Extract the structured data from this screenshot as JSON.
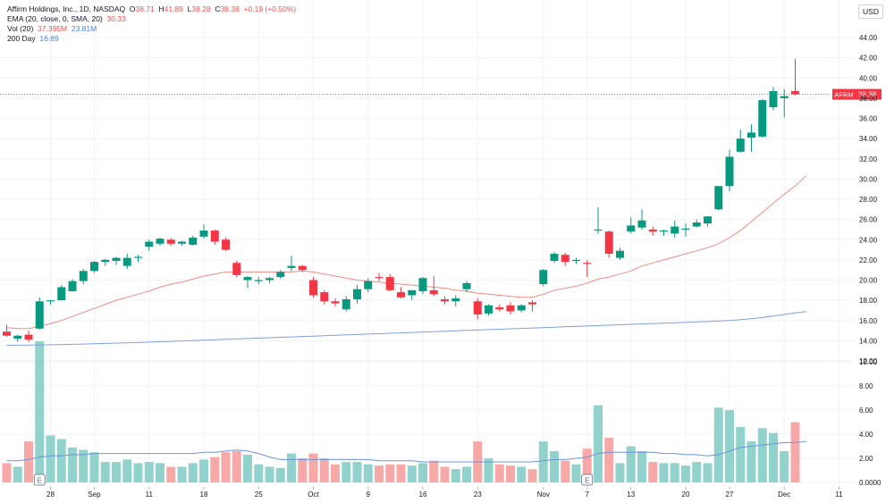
{
  "legend": {
    "title": "Affirm Holdings, Inc., 1D, NASDAQ",
    "ohlc": {
      "o_label": "O",
      "o": "38.71",
      "h_label": "H",
      "h": "41.89",
      "l_label": "L",
      "l": "38.28",
      "c_label": "C",
      "c": "38.38",
      "chg": "+0.19 (+0.50%)"
    },
    "ema_label": "EMA (20, close, 0, SMA, 20)",
    "ema_value": "30.33",
    "vol_label": "Vol (20)",
    "vol_value": "37.395M",
    "vol_ma_value": "23.81M",
    "ma200_label": "200 Day",
    "ma200_value": "16.89"
  },
  "currency_button": "USD",
  "price_tag": {
    "symbol": "AFRM",
    "value": "38.38"
  },
  "chart_data": {
    "type": "candlestick",
    "price_axis": {
      "min": 12.0,
      "max": 44.0,
      "ticks": [
        "44.00",
        "42.00",
        "40.00",
        "38.00",
        "36.00",
        "34.00",
        "32.00",
        "30.00",
        "28.00",
        "26.00",
        "24.00",
        "22.00",
        "20.00",
        "18.00",
        "16.00",
        "14.00",
        "12.00"
      ]
    },
    "volume_axis": {
      "min": 0,
      "max": 10,
      "ticks": [
        "10.00",
        "8.00",
        "6.00",
        "4.00",
        "2.00",
        "0.0000"
      ]
    },
    "x_ticks": [
      {
        "label": "28",
        "index": 4
      },
      {
        "label": "Sep",
        "index": 8
      },
      {
        "label": "11",
        "index": 13
      },
      {
        "label": "18",
        "index": 18
      },
      {
        "label": "25",
        "index": 23
      },
      {
        "label": "Oct",
        "index": 28
      },
      {
        "label": "9",
        "index": 33
      },
      {
        "label": "16",
        "index": 38
      },
      {
        "label": "23",
        "index": 43
      },
      {
        "label": "Nov",
        "index": 49
      },
      {
        "label": "7",
        "index": 53
      },
      {
        "label": "13",
        "index": 57
      },
      {
        "label": "20",
        "index": 62
      },
      {
        "label": "27",
        "index": 66
      },
      {
        "label": "Dec",
        "index": 71
      },
      {
        "label": "11",
        "index": 76
      }
    ],
    "candles": [
      {
        "o": 14.9,
        "h": 15.6,
        "l": 14.4,
        "c": 14.5,
        "v": 1.6
      },
      {
        "o": 14.2,
        "h": 14.6,
        "l": 13.9,
        "c": 14.5,
        "v": 1.3
      },
      {
        "o": 14.6,
        "h": 15.0,
        "l": 13.9,
        "c": 14.1,
        "v": 3.4
      },
      {
        "o": 15.2,
        "h": 18.3,
        "l": 15.1,
        "c": 17.9,
        "v": 11.7
      },
      {
        "o": 17.9,
        "h": 18.0,
        "l": 17.6,
        "c": 18.0,
        "v": 3.9
      },
      {
        "o": 18.0,
        "h": 19.5,
        "l": 18.0,
        "c": 19.3,
        "v": 3.6
      },
      {
        "o": 18.9,
        "h": 20.1,
        "l": 18.9,
        "c": 19.9,
        "v": 2.9
      },
      {
        "o": 19.9,
        "h": 21.1,
        "l": 19.6,
        "c": 20.9,
        "v": 2.7
      },
      {
        "o": 20.9,
        "h": 21.9,
        "l": 20.7,
        "c": 21.8,
        "v": 2.5
      },
      {
        "o": 21.8,
        "h": 22.1,
        "l": 21.4,
        "c": 22.0,
        "v": 1.7
      },
      {
        "o": 21.9,
        "h": 22.3,
        "l": 21.5,
        "c": 22.2,
        "v": 1.7
      },
      {
        "o": 21.4,
        "h": 22.6,
        "l": 21.1,
        "c": 22.2,
        "v": 1.9
      },
      {
        "o": 22.2,
        "h": 22.5,
        "l": 21.8,
        "c": 22.3,
        "v": 1.6
      },
      {
        "o": 23.3,
        "h": 24.0,
        "l": 22.9,
        "c": 23.8,
        "v": 1.7
      },
      {
        "o": 23.6,
        "h": 24.2,
        "l": 23.4,
        "c": 24.1,
        "v": 1.6
      },
      {
        "o": 24.0,
        "h": 24.2,
        "l": 23.4,
        "c": 23.6,
        "v": 1.3
      },
      {
        "o": 23.6,
        "h": 23.9,
        "l": 23.4,
        "c": 23.8,
        "v": 1.3
      },
      {
        "o": 23.5,
        "h": 24.4,
        "l": 23.4,
        "c": 24.2,
        "v": 1.6
      },
      {
        "o": 24.3,
        "h": 25.5,
        "l": 24.1,
        "c": 24.9,
        "v": 1.9
      },
      {
        "o": 24.9,
        "h": 25.0,
        "l": 23.5,
        "c": 23.8,
        "v": 2.1
      },
      {
        "o": 24.0,
        "h": 24.2,
        "l": 22.9,
        "c": 23.0,
        "v": 2.5
      },
      {
        "o": 21.7,
        "h": 21.9,
        "l": 20.3,
        "c": 20.5,
        "v": 2.6
      },
      {
        "o": 20.0,
        "h": 20.4,
        "l": 19.2,
        "c": 20.3,
        "v": 2.3
      },
      {
        "o": 19.9,
        "h": 20.3,
        "l": 19.6,
        "c": 20.0,
        "v": 1.5
      },
      {
        "o": 20.0,
        "h": 20.3,
        "l": 19.7,
        "c": 20.2,
        "v": 1.3
      },
      {
        "o": 20.3,
        "h": 21.0,
        "l": 20.1,
        "c": 20.8,
        "v": 1.2
      },
      {
        "o": 21.2,
        "h": 22.4,
        "l": 20.9,
        "c": 21.4,
        "v": 2.4
      },
      {
        "o": 21.4,
        "h": 21.5,
        "l": 20.8,
        "c": 21.0,
        "v": 2.0
      },
      {
        "o": 20.0,
        "h": 20.3,
        "l": 18.3,
        "c": 18.5,
        "v": 2.4
      },
      {
        "o": 18.8,
        "h": 19.0,
        "l": 17.6,
        "c": 17.9,
        "v": 2.0
      },
      {
        "o": 17.9,
        "h": 18.2,
        "l": 17.4,
        "c": 17.7,
        "v": 1.5
      },
      {
        "o": 17.1,
        "h": 18.4,
        "l": 16.9,
        "c": 18.1,
        "v": 1.7
      },
      {
        "o": 18.1,
        "h": 19.5,
        "l": 17.7,
        "c": 19.1,
        "v": 1.7
      },
      {
        "o": 19.1,
        "h": 20.2,
        "l": 18.8,
        "c": 19.9,
        "v": 1.5
      },
      {
        "o": 20.3,
        "h": 20.7,
        "l": 19.9,
        "c": 20.2,
        "v": 1.4
      },
      {
        "o": 20.3,
        "h": 20.6,
        "l": 18.9,
        "c": 19.0,
        "v": 1.5
      },
      {
        "o": 18.8,
        "h": 19.3,
        "l": 18.2,
        "c": 18.3,
        "v": 1.5
      },
      {
        "o": 18.5,
        "h": 19.0,
        "l": 18.0,
        "c": 19.0,
        "v": 1.4
      },
      {
        "o": 18.9,
        "h": 20.3,
        "l": 18.6,
        "c": 20.2,
        "v": 1.6
      },
      {
        "o": 19.0,
        "h": 20.4,
        "l": 18.4,
        "c": 18.6,
        "v": 1.8
      },
      {
        "o": 18.1,
        "h": 18.4,
        "l": 17.6,
        "c": 17.9,
        "v": 1.3
      },
      {
        "o": 17.9,
        "h": 18.5,
        "l": 17.4,
        "c": 18.2,
        "v": 1.1
      },
      {
        "o": 19.1,
        "h": 19.9,
        "l": 18.8,
        "c": 19.7,
        "v": 1.3
      },
      {
        "o": 17.9,
        "h": 18.2,
        "l": 16.1,
        "c": 16.6,
        "v": 3.4
      },
      {
        "o": 16.7,
        "h": 17.6,
        "l": 16.5,
        "c": 17.5,
        "v": 2.0
      },
      {
        "o": 17.3,
        "h": 17.6,
        "l": 16.9,
        "c": 17.1,
        "v": 1.5
      },
      {
        "o": 17.5,
        "h": 17.8,
        "l": 16.6,
        "c": 16.9,
        "v": 1.4
      },
      {
        "o": 17.0,
        "h": 17.6,
        "l": 16.8,
        "c": 17.5,
        "v": 1.3
      },
      {
        "o": 17.8,
        "h": 18.0,
        "l": 16.9,
        "c": 17.6,
        "v": 1.1
      },
      {
        "o": 19.6,
        "h": 21.1,
        "l": 19.4,
        "c": 21.0,
        "v": 3.4
      },
      {
        "o": 21.9,
        "h": 22.8,
        "l": 21.7,
        "c": 22.6,
        "v": 2.6
      },
      {
        "o": 22.5,
        "h": 22.7,
        "l": 21.4,
        "c": 21.8,
        "v": 1.8
      },
      {
        "o": 21.9,
        "h": 22.2,
        "l": 21.6,
        "c": 22.0,
        "v": 1.5
      },
      {
        "o": 21.7,
        "h": 22.0,
        "l": 20.3,
        "c": 21.6,
        "v": 2.8
      },
      {
        "o": 24.9,
        "h": 27.2,
        "l": 24.6,
        "c": 25.0,
        "v": 6.4
      },
      {
        "o": 24.8,
        "h": 24.9,
        "l": 22.2,
        "c": 22.6,
        "v": 3.7
      },
      {
        "o": 22.2,
        "h": 23.2,
        "l": 22.0,
        "c": 22.9,
        "v": 1.6
      },
      {
        "o": 24.8,
        "h": 26.2,
        "l": 24.6,
        "c": 25.4,
        "v": 3.0
      },
      {
        "o": 25.2,
        "h": 27.0,
        "l": 25.0,
        "c": 25.9,
        "v": 2.6
      },
      {
        "o": 25.0,
        "h": 25.3,
        "l": 24.4,
        "c": 24.8,
        "v": 1.7
      },
      {
        "o": 24.8,
        "h": 25.0,
        "l": 24.4,
        "c": 24.9,
        "v": 1.6
      },
      {
        "o": 24.6,
        "h": 25.9,
        "l": 24.2,
        "c": 25.3,
        "v": 1.6
      },
      {
        "o": 25.1,
        "h": 25.6,
        "l": 24.3,
        "c": 25.1,
        "v": 1.4
      },
      {
        "o": 25.3,
        "h": 26.0,
        "l": 25.2,
        "c": 25.7,
        "v": 1.7
      },
      {
        "o": 25.6,
        "h": 26.3,
        "l": 25.3,
        "c": 26.3,
        "v": 1.6
      },
      {
        "o": 27.0,
        "h": 29.3,
        "l": 26.9,
        "c": 29.3,
        "v": 6.2
      },
      {
        "o": 29.3,
        "h": 32.9,
        "l": 28.8,
        "c": 32.2,
        "v": 6.0
      },
      {
        "o": 32.7,
        "h": 34.9,
        "l": 32.6,
        "c": 34.0,
        "v": 4.6
      },
      {
        "o": 34.1,
        "h": 35.4,
        "l": 32.7,
        "c": 34.6,
        "v": 3.4
      },
      {
        "o": 34.2,
        "h": 37.9,
        "l": 34.1,
        "c": 37.8,
        "v": 4.5
      },
      {
        "o": 37.1,
        "h": 39.1,
        "l": 36.8,
        "c": 38.7,
        "v": 4.1
      },
      {
        "o": 38.0,
        "h": 38.9,
        "l": 36.1,
        "c": 38.2,
        "v": 2.6
      },
      {
        "o": 38.71,
        "h": 41.89,
        "l": 38.28,
        "c": 38.38,
        "v": 5.0
      }
    ],
    "ema20": [
      15.3,
      15.2,
      15.2,
      15.4,
      15.7,
      16.0,
      16.4,
      16.8,
      17.2,
      17.6,
      18.0,
      18.3,
      18.6,
      18.9,
      19.3,
      19.6,
      19.8,
      20.1,
      20.4,
      20.6,
      20.8,
      20.8,
      20.8,
      20.8,
      20.8,
      20.8,
      20.8,
      20.9,
      20.8,
      20.6,
      20.4,
      20.2,
      20.0,
      19.9,
      19.8,
      19.7,
      19.6,
      19.5,
      19.4,
      19.3,
      19.2,
      19.0,
      18.9,
      18.7,
      18.6,
      18.5,
      18.4,
      18.3,
      18.3,
      18.6,
      19.0,
      19.2,
      19.4,
      19.7,
      20.1,
      20.3,
      20.6,
      20.9,
      21.4,
      21.7,
      22.0,
      22.3,
      22.6,
      22.9,
      23.2,
      23.6,
      24.2,
      24.9,
      25.8,
      26.7,
      27.6,
      28.5,
      29.3,
      30.33
    ],
    "ma200": [
      13.55,
      13.56,
      13.57,
      13.58,
      13.6,
      13.62,
      13.64,
      13.67,
      13.7,
      13.73,
      13.76,
      13.79,
      13.82,
      13.86,
      13.9,
      13.94,
      13.98,
      14.02,
      14.06,
      14.1,
      14.14,
      14.18,
      14.22,
      14.26,
      14.3,
      14.34,
      14.38,
      14.42,
      14.46,
      14.5,
      14.54,
      14.58,
      14.62,
      14.66,
      14.7,
      14.74,
      14.78,
      14.82,
      14.86,
      14.9,
      14.94,
      14.98,
      15.02,
      15.06,
      15.1,
      15.14,
      15.18,
      15.22,
      15.26,
      15.3,
      15.34,
      15.38,
      15.42,
      15.46,
      15.5,
      15.54,
      15.58,
      15.62,
      15.66,
      15.7,
      15.74,
      15.78,
      15.82,
      15.86,
      15.9,
      15.94,
      16.0,
      16.08,
      16.18,
      16.3,
      16.45,
      16.6,
      16.75,
      16.89
    ],
    "vol_ma": [
      1.8,
      1.8,
      1.9,
      2.1,
      2.2,
      2.2,
      2.3,
      2.3,
      2.4,
      2.4,
      2.4,
      2.4,
      2.4,
      2.4,
      2.4,
      2.4,
      2.4,
      2.4,
      2.5,
      2.5,
      2.6,
      2.7,
      2.6,
      2.4,
      2.1,
      1.9,
      1.9,
      1.9,
      1.9,
      1.9,
      1.9,
      1.9,
      1.9,
      1.9,
      1.8,
      1.8,
      1.8,
      1.8,
      1.7,
      1.7,
      1.7,
      1.7,
      1.7,
      1.7,
      1.7,
      1.7,
      1.7,
      1.7,
      1.7,
      1.8,
      1.9,
      1.9,
      2.0,
      2.1,
      2.4,
      2.5,
      2.5,
      2.5,
      2.5,
      2.5,
      2.4,
      2.4,
      2.3,
      2.3,
      2.2,
      2.3,
      2.6,
      2.9,
      3.0,
      3.1,
      3.2,
      3.3,
      3.3,
      3.4
    ],
    "earnings_markers": [
      {
        "label": "E",
        "index": 3
      },
      {
        "label": "E",
        "index": 53
      }
    ],
    "grid": true
  }
}
